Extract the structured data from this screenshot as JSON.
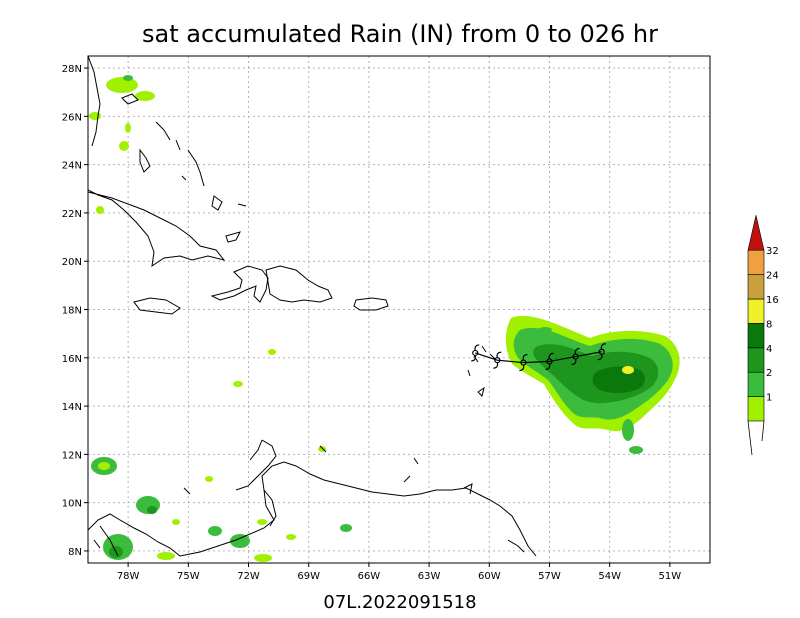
{
  "title": "sat accumulated Rain (IN) from 0 to 026 hr",
  "footer": "07L.2022091518",
  "map": {
    "lon_range": [
      -80.0,
      -49.0
    ],
    "lat_range": [
      7.5,
      28.5
    ],
    "lon_ticks": [
      {
        "lon": -78,
        "label": "78W"
      },
      {
        "lon": -75,
        "label": "75W"
      },
      {
        "lon": -72,
        "label": "72W"
      },
      {
        "lon": -69,
        "label": "69W"
      },
      {
        "lon": -66,
        "label": "66W"
      },
      {
        "lon": -63,
        "label": "63W"
      },
      {
        "lon": -60,
        "label": "60W"
      },
      {
        "lon": -57,
        "label": "57W"
      },
      {
        "lon": -54,
        "label": "54W"
      },
      {
        "lon": -51,
        "label": "51W"
      }
    ],
    "lat_ticks": [
      {
        "lat": 8,
        "label": "8N"
      },
      {
        "lat": 10,
        "label": "10N"
      },
      {
        "lat": 12,
        "label": "12N"
      },
      {
        "lat": 14,
        "label": "14N"
      },
      {
        "lat": 16,
        "label": "16N"
      },
      {
        "lat": 18,
        "label": "18N"
      },
      {
        "lat": 20,
        "label": "20N"
      },
      {
        "lat": 22,
        "label": "22N"
      },
      {
        "lat": 24,
        "label": "24N"
      },
      {
        "lat": 26,
        "label": "26N"
      },
      {
        "lat": 28,
        "label": "28N"
      }
    ],
    "grid": true
  },
  "colorbar": {
    "levels": [
      {
        "label": "1",
        "color": "#a0f000"
      },
      {
        "label": "2",
        "color": "#3cbc3c"
      },
      {
        "label": "4",
        "color": "#1e961e"
      },
      {
        "label": "8",
        "color": "#0a780a"
      },
      {
        "label": "16",
        "color": "#f0f028"
      },
      {
        "label": "24",
        "color": "#c8a03c"
      },
      {
        "label": "32",
        "color": "#f0a040"
      }
    ],
    "top_color": "#c01010"
  },
  "track": [
    {
      "lon": -60.7,
      "lat": 16.2
    },
    {
      "lon": -59.6,
      "lat": 15.9
    },
    {
      "lon": -58.3,
      "lat": 15.8
    },
    {
      "lon": -57.0,
      "lat": 15.85
    },
    {
      "lon": -55.7,
      "lat": 16.05
    },
    {
      "lon": -54.4,
      "lat": 16.25
    }
  ],
  "colors": {
    "coast": "#000000",
    "grid": "#b4b4b4",
    "track": "#000000"
  }
}
